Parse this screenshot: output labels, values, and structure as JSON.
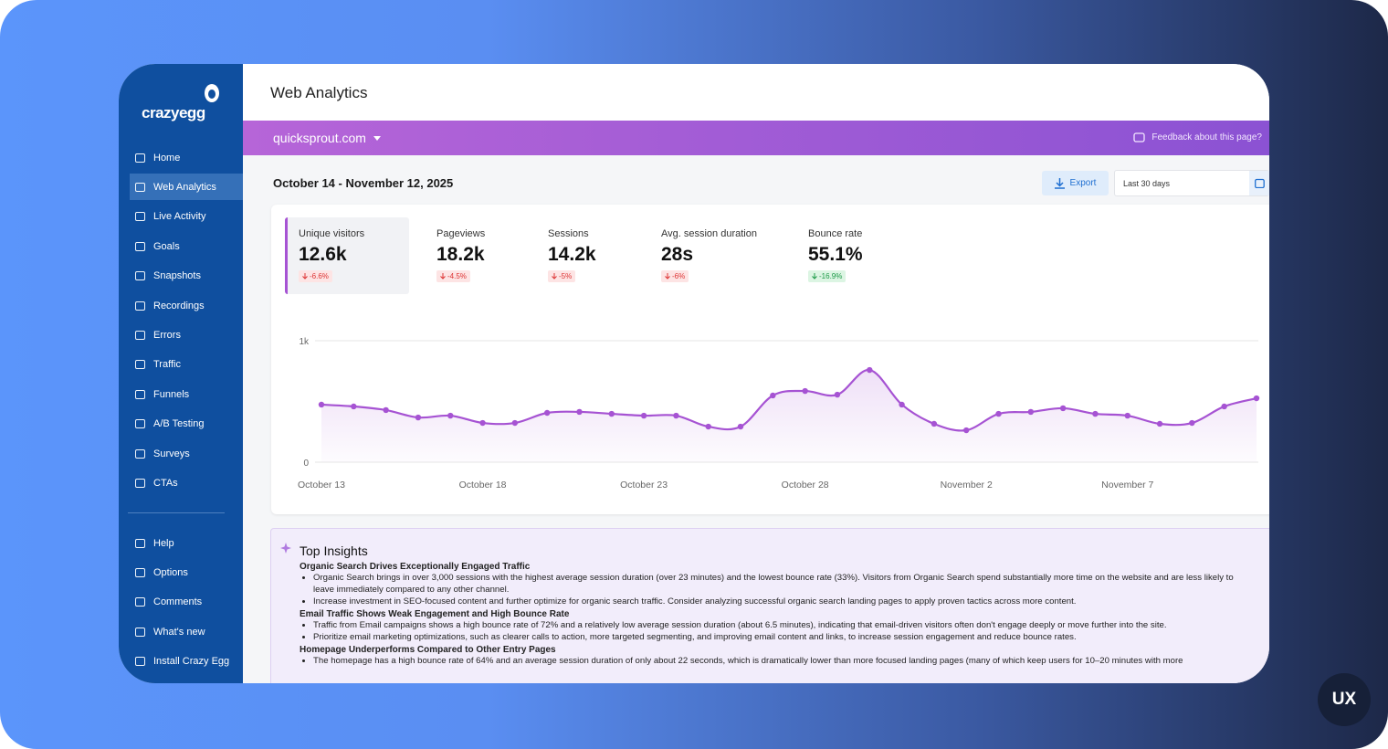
{
  "logo": "crazyegg",
  "nav": {
    "main": [
      "Home",
      "Web Analytics",
      "Live Activity",
      "Goals",
      "Snapshots",
      "Recordings",
      "Errors",
      "Traffic",
      "Funnels",
      "A/B Testing",
      "Surveys",
      "CTAs"
    ],
    "bottom": [
      "Help",
      "Options",
      "Comments",
      "What's new",
      "Install Crazy Egg"
    ]
  },
  "page_title": "Web Analytics",
  "site": "quicksprout.com",
  "feedback": "Feedback about this page?",
  "date_range": "October 14 - November 12, 2025",
  "export": "Export",
  "period": "Last 30 days",
  "metrics": [
    {
      "label": "Unique visitors",
      "value": "12.6k",
      "change": "-6.6%",
      "trend": "bad"
    },
    {
      "label": "Pageviews",
      "value": "18.2k",
      "change": "-4.5%",
      "trend": "bad"
    },
    {
      "label": "Sessions",
      "value": "14.2k",
      "change": "-5%",
      "trend": "bad"
    },
    {
      "label": "Avg. session duration",
      "value": "28s",
      "change": "-6%",
      "trend": "bad"
    },
    {
      "label": "Bounce rate",
      "value": "55.1%",
      "change": "-16.9%",
      "trend": "good"
    }
  ],
  "chart_data": {
    "type": "line",
    "color": "#a653d3",
    "categories": [
      "October 13",
      null,
      null,
      null,
      null,
      "October 18",
      null,
      null,
      null,
      null,
      "October 23",
      null,
      null,
      null,
      null,
      "October 28",
      null,
      null,
      null,
      null,
      "November 2",
      null,
      null,
      null,
      null,
      "November 7",
      null,
      null,
      null,
      null
    ],
    "values": [
      474,
      459,
      429,
      368,
      383,
      323,
      323,
      406,
      414,
      398,
      383,
      383,
      293,
      293,
      549,
      586,
      556,
      759,
      474,
      316,
      263,
      398,
      414,
      444,
      398,
      383,
      316,
      323,
      459,
      526
    ],
    "ylim": [
      0,
      1000
    ],
    "yticks": [
      0,
      {
        "value": 1000,
        "label": "1k"
      }
    ],
    "grid": true
  },
  "insights": {
    "title": "Top Insights",
    "sections": [
      {
        "heading": "Organic Search Drives Exceptionally Engaged Traffic",
        "bullets": [
          "Organic Search brings in over 3,000 sessions with the highest average session duration (over 23 minutes) and the lowest bounce rate (33%). Visitors from Organic Search spend substantially more time on the website and are less likely to leave immediately compared to any other channel.",
          "Increase investment in SEO-focused content and further optimize for organic search traffic. Consider analyzing successful organic search landing pages to apply proven tactics across more content."
        ]
      },
      {
        "heading": "Email Traffic Shows Weak Engagement and High Bounce Rate",
        "bullets": [
          "Traffic from Email campaigns shows a high bounce rate of 72% and a relatively low average session duration (about 6.5 minutes), indicating that email-driven visitors often don't engage deeply or move further into the site.",
          "Prioritize email marketing optimizations, such as clearer calls to action, more targeted segmenting, and improving email content and links, to increase session engagement and reduce bounce rates."
        ]
      },
      {
        "heading": "Homepage Underperforms Compared to Other Entry Pages",
        "bullets": [
          "The homepage has a high bounce rate of 64% and an average session duration of only about 22 seconds, which is dramatically lower than more focused landing pages (many of which keep users for 10–20 minutes with more"
        ]
      }
    ]
  },
  "badge": "UX"
}
